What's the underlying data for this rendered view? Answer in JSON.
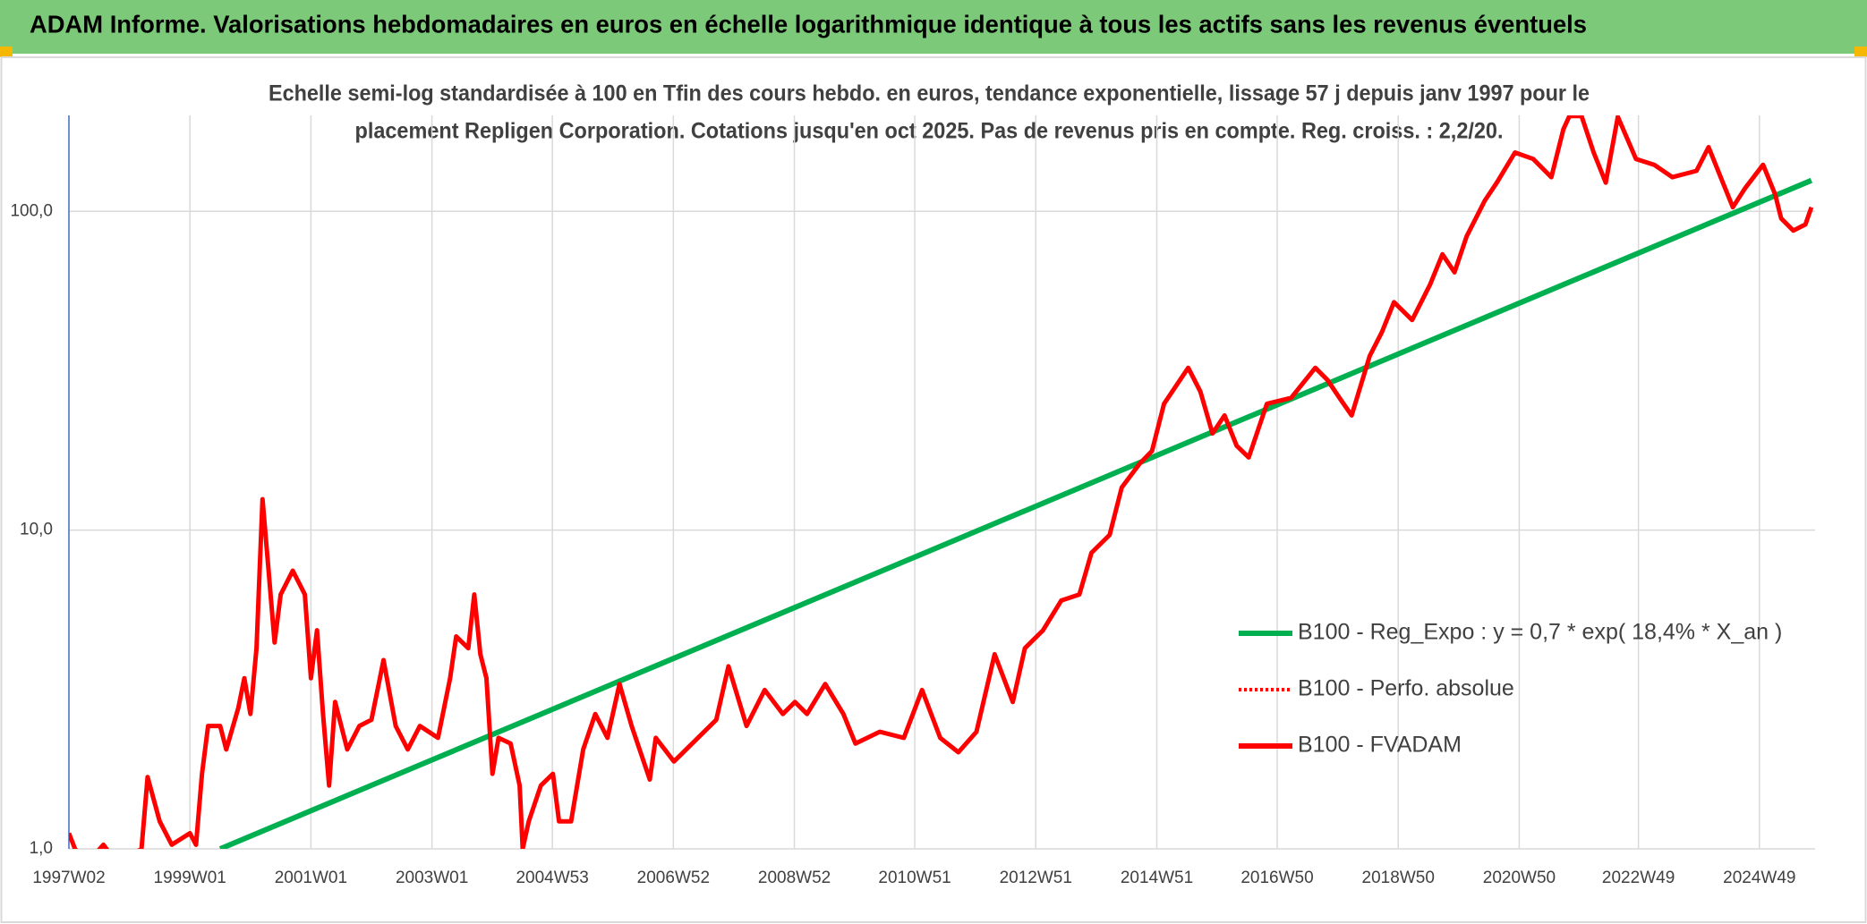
{
  "chart_data": {
    "type": "line",
    "title": "ADAM Informe. Valorisations hebdomadaires en euros en échelle logarithmique identique à tous les actifs sans les revenus éventuels",
    "subtitle": [
      "Echelle semi-log standardisée à 100 en Tfin des cours hebdo. en euros, tendance exponentielle, lissage 57 j depuis janv 1997 pour le",
      "placement Repligen Corporation. Cotations jusqu'en oct 2025. Pas de revenus pris en compte. Reg. croiss. : 2,2/20."
    ],
    "xlim": [
      1997.0,
      2025.86
    ],
    "xticks": [
      {
        "value": 1997.0,
        "label": "1997W02"
      },
      {
        "value": 1999.0,
        "label": "1999W01"
      },
      {
        "value": 2001.0,
        "label": "2001W01"
      },
      {
        "value": 2003.0,
        "label": "2003W01"
      },
      {
        "value": 2004.99,
        "label": "2004W53"
      },
      {
        "value": 2006.99,
        "label": "2006W52"
      },
      {
        "value": 2008.99,
        "label": "2008W52"
      },
      {
        "value": 2010.98,
        "label": "2010W51"
      },
      {
        "value": 2012.98,
        "label": "2012W51"
      },
      {
        "value": 2014.98,
        "label": "2014W51"
      },
      {
        "value": 2016.97,
        "label": "2016W50"
      },
      {
        "value": 2018.97,
        "label": "2018W50"
      },
      {
        "value": 2020.97,
        "label": "2020W50"
      },
      {
        "value": 2022.94,
        "label": "2022W49"
      },
      {
        "value": 2024.94,
        "label": "2024W49"
      }
    ],
    "ylim": [
      1,
      200
    ],
    "log_y": true,
    "yticks": [
      {
        "value": 1,
        "label": "1,0"
      },
      {
        "value": 10,
        "label": "10,0"
      },
      {
        "value": 100,
        "label": "100,0"
      }
    ],
    "grid": true,
    "legend": "lower right",
    "series": [
      {
        "name": "B100 - Reg_Expo : y = 0,7 * exp( 18,4% *  X_an )",
        "color": "#00b050",
        "dash": "solid",
        "x": [
          1999.5,
          2025.8
        ],
        "values": [
          1,
          125
        ]
      },
      {
        "name": "B100 - Perfo. absolue",
        "color": "#ff0000",
        "dash": "dotted",
        "x": [],
        "values": []
      },
      {
        "name": "B100 - FVADAM",
        "color": "#ff0000",
        "dash": "solid",
        "x": [
          1997.0,
          1997.1,
          1997.3,
          1997.57,
          1997.8,
          1998.2,
          1998.3,
          1998.5,
          1998.7,
          1999.0,
          1999.1,
          1999.2,
          1999.3,
          1999.5,
          1999.6,
          1999.8,
          1999.9,
          2000.0,
          2000.1,
          2000.2,
          2000.3,
          2000.4,
          2000.5,
          2000.7,
          2000.8,
          2000.9,
          2001.0,
          2001.1,
          2001.2,
          2001.3,
          2001.4,
          2001.6,
          2001.8,
          2002.0,
          2002.1,
          2002.2,
          2002.4,
          2002.6,
          2002.8,
          2003.1,
          2003.3,
          2003.4,
          2003.6,
          2003.7,
          2003.8,
          2003.9,
          2004.0,
          2004.1,
          2004.3,
          2004.45,
          2004.5,
          2004.6,
          2004.8,
          2005.0,
          2005.1,
          2005.3,
          2005.5,
          2005.7,
          2005.9,
          2006.1,
          2006.3,
          2006.6,
          2006.7,
          2007.0,
          2007.3,
          2007.7,
          2007.9,
          2008.2,
          2008.5,
          2008.8,
          2009.0,
          2009.2,
          2009.5,
          2009.8,
          2010.0,
          2010.4,
          2010.8,
          2011.1,
          2011.4,
          2011.7,
          2012.0,
          2012.3,
          2012.6,
          2012.8,
          2013.1,
          2013.4,
          2013.7,
          2013.9,
          2014.2,
          2014.4,
          2014.7,
          2014.9,
          2015.1,
          2015.5,
          2015.7,
          2015.9,
          2016.1,
          2016.3,
          2016.5,
          2016.8,
          2017.2,
          2017.6,
          2017.8,
          2018.0,
          2018.2,
          2018.5,
          2018.7,
          2018.9,
          2019.2,
          2019.5,
          2019.7,
          2019.9,
          2020.1,
          2020.4,
          2020.6,
          2020.9,
          2021.2,
          2021.5,
          2021.7,
          2021.8,
          2022.0,
          2022.2,
          2022.4,
          2022.6,
          2022.9,
          2023.2,
          2023.5,
          2023.9,
          2024.1,
          2024.3,
          2024.5,
          2024.7,
          2025.0,
          2025.2,
          2025.3,
          2025.5,
          2025.7,
          2025.8
        ],
        "values": [
          1.12,
          1.0,
          0.9,
          1.03,
          0.9,
          1.0,
          1.68,
          1.22,
          1.03,
          1.12,
          1.03,
          1.72,
          2.43,
          2.43,
          2.05,
          2.77,
          3.43,
          2.65,
          4.26,
          12.5,
          7.46,
          4.44,
          6.28,
          7.46,
          6.84,
          6.28,
          3.43,
          4.85,
          2.65,
          1.58,
          2.89,
          2.05,
          2.43,
          2.54,
          3.15,
          3.91,
          2.43,
          2.05,
          2.43,
          2.23,
          3.43,
          4.64,
          4.26,
          6.28,
          4.08,
          3.43,
          1.72,
          2.23,
          2.14,
          1.58,
          1.0,
          1.22,
          1.58,
          1.72,
          1.22,
          1.22,
          2.05,
          2.65,
          2.23,
          3.29,
          2.43,
          1.65,
          2.23,
          1.88,
          2.14,
          2.54,
          3.74,
          2.43,
          3.15,
          2.65,
          2.89,
          2.65,
          3.29,
          2.65,
          2.14,
          2.33,
          2.23,
          3.15,
          2.23,
          2.01,
          2.33,
          4.08,
          2.89,
          4.26,
          4.85,
          6.01,
          6.28,
          8.49,
          9.66,
          13.6,
          16.2,
          17.7,
          24.9,
          32.3,
          27.2,
          20.1,
          22.9,
          18.4,
          16.9,
          24.9,
          26.0,
          32.3,
          29.6,
          26.0,
          22.9,
          35.2,
          41.8,
          51.9,
          45.6,
          59.1,
          73.3,
          64.4,
          83.4,
          108,
          123,
          153,
          146,
          128,
          181,
          199,
          199,
          153,
          123,
          198,
          146,
          140,
          128,
          134,
          159,
          128,
          103,
          118,
          140,
          113,
          95,
          87,
          91,
          103
        ]
      }
    ]
  }
}
